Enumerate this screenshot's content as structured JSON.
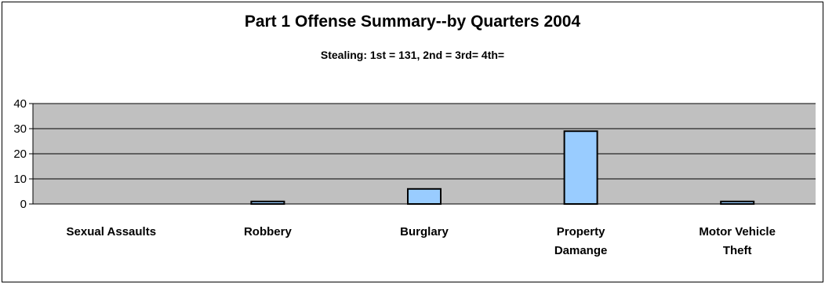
{
  "chart_data": {
    "type": "bar",
    "title": "Part 1 Offense Summary--by Quarters 2004",
    "subtitle": "Stealing: 1st = 131, 2nd =  3rd= 4th=",
    "categories": [
      [
        "Sexual Assaults"
      ],
      [
        "Robbery"
      ],
      [
        "Burglary"
      ],
      [
        "Property",
        "Damange"
      ],
      [
        "Motor Vehicle",
        "Theft"
      ]
    ],
    "values": [
      0,
      1,
      6,
      29,
      1
    ],
    "ylim": [
      0,
      40
    ],
    "yticks": [
      0,
      10,
      20,
      30,
      40
    ],
    "xlabel": "",
    "ylabel": "",
    "grid": true,
    "legend": "none",
    "colors": {
      "plot_background": "#c0c0c0",
      "bar_fill": "#99ccff",
      "bar_stroke": "#000000",
      "gridline": "#000000"
    }
  }
}
